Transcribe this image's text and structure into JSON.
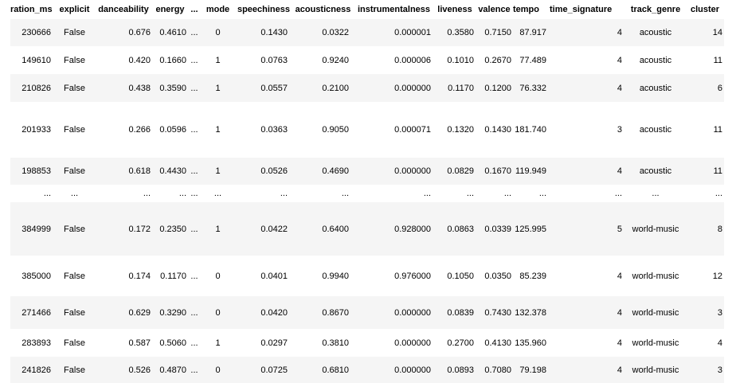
{
  "columns": [
    "ration_ms",
    "explicit",
    "danceability",
    "energy",
    "...",
    "mode",
    "speechiness",
    "acousticness",
    "instrumentalness",
    "liveness",
    "valence",
    "tempo",
    "time_signature",
    "track_genre",
    "cluster"
  ],
  "rows": [
    [
      "230666",
      "False",
      "0.676",
      "0.4610",
      "...",
      "0",
      "0.1430",
      "0.0322",
      "0.000001",
      "0.3580",
      "0.7150",
      "87.917",
      "4",
      "acoustic",
      "14"
    ],
    [
      "149610",
      "False",
      "0.420",
      "0.1660",
      "...",
      "1",
      "0.0763",
      "0.9240",
      "0.000006",
      "0.1010",
      "0.2670",
      "77.489",
      "4",
      "acoustic",
      "11"
    ],
    [
      "210826",
      "False",
      "0.438",
      "0.3590",
      "...",
      "1",
      "0.0557",
      "0.2100",
      "0.000000",
      "0.1170",
      "0.1200",
      "76.332",
      "4",
      "acoustic",
      "6"
    ],
    [
      "201933",
      "False",
      "0.266",
      "0.0596",
      "...",
      "1",
      "0.0363",
      "0.9050",
      "0.000071",
      "0.1320",
      "0.1430",
      "181.740",
      "3",
      "acoustic",
      "11"
    ],
    [
      "198853",
      "False",
      "0.618",
      "0.4430",
      "...",
      "1",
      "0.0526",
      "0.4690",
      "0.000000",
      "0.0829",
      "0.1670",
      "119.949",
      "4",
      "acoustic",
      "11"
    ],
    [
      "...",
      "...",
      "...",
      "...",
      "...",
      "...",
      "...",
      "...",
      "...",
      "...",
      "...",
      "...",
      "...",
      "...",
      "..."
    ],
    [
      "384999",
      "False",
      "0.172",
      "0.2350",
      "...",
      "1",
      "0.0422",
      "0.6400",
      "0.928000",
      "0.0863",
      "0.0339",
      "125.995",
      "5",
      "world-music",
      "8"
    ],
    [
      "385000",
      "False",
      "0.174",
      "0.1170",
      "...",
      "0",
      "0.0401",
      "0.9940",
      "0.976000",
      "0.1050",
      "0.0350",
      "85.239",
      "4",
      "world-music",
      "12"
    ],
    [
      "271466",
      "False",
      "0.629",
      "0.3290",
      "...",
      "0",
      "0.0420",
      "0.8670",
      "0.000000",
      "0.0839",
      "0.7430",
      "132.378",
      "4",
      "world-music",
      "3"
    ],
    [
      "283893",
      "False",
      "0.587",
      "0.5060",
      "...",
      "1",
      "0.0297",
      "0.3810",
      "0.000000",
      "0.2700",
      "0.4130",
      "135.960",
      "4",
      "world-music",
      "4"
    ],
    [
      "241826",
      "False",
      "0.526",
      "0.4870",
      "...",
      "0",
      "0.0725",
      "0.6810",
      "0.000000",
      "0.0893",
      "0.7080",
      "79.198",
      "4",
      "world-music",
      "3"
    ]
  ]
}
